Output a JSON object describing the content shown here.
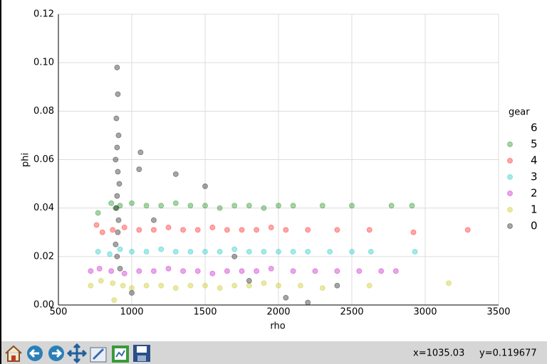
{
  "chart_data": {
    "type": "scatter",
    "x_label": "rho",
    "y_label": "phi",
    "xlim": [
      500,
      3500
    ],
    "ylim": [
      0,
      0.12
    ],
    "xticks": [
      500,
      1000,
      1500,
      2000,
      2500,
      3000,
      3500
    ],
    "yticks": [
      {
        "value": 0,
        "label": "0.00"
      },
      {
        "value": 0.02,
        "label": "0.02"
      },
      {
        "value": 0.04,
        "label": "0.04"
      },
      {
        "value": 0.06,
        "label": "0.06"
      },
      {
        "value": 0.08,
        "label": "0.08"
      },
      {
        "value": 0.1,
        "label": "0.10"
      },
      {
        "value": 0.12,
        "label": "0.12"
      }
    ],
    "grid": true,
    "legend_title": "gear",
    "legend_position": "right",
    "series": [
      {
        "name": "6",
        "x": [],
        "values": []
      },
      {
        "name": "5",
        "color": "#008000",
        "x": [
          770,
          860,
          890,
          920,
          1000,
          1100,
          1200,
          1300,
          1400,
          1500,
          1600,
          1700,
          1800,
          1900,
          2000,
          2100,
          2300,
          2500,
          2770,
          2910
        ],
        "values": [
          0.038,
          0.042,
          0.04,
          0.041,
          0.042,
          0.041,
          0.041,
          0.042,
          0.041,
          0.041,
          0.04,
          0.041,
          0.041,
          0.04,
          0.041,
          0.041,
          0.041,
          0.041,
          0.041,
          0.041
        ]
      },
      {
        "name": "4",
        "color": "#ff0000",
        "x": [
          760,
          800,
          870,
          950,
          1050,
          1150,
          1250,
          1350,
          1450,
          1550,
          1650,
          1750,
          1850,
          1950,
          2050,
          2200,
          2400,
          2620,
          2920,
          3290
        ],
        "values": [
          0.033,
          0.03,
          0.031,
          0.032,
          0.031,
          0.031,
          0.032,
          0.031,
          0.031,
          0.032,
          0.031,
          0.031,
          0.031,
          0.032,
          0.031,
          0.031,
          0.031,
          0.031,
          0.03,
          0.031
        ]
      },
      {
        "name": "3",
        "color": "#00bfbf",
        "x": [
          770,
          850,
          920,
          1000,
          1100,
          1200,
          1300,
          1400,
          1500,
          1600,
          1700,
          1800,
          1900,
          2000,
          2100,
          2200,
          2350,
          2500,
          2630,
          2930
        ],
        "values": [
          0.022,
          0.021,
          0.023,
          0.022,
          0.022,
          0.023,
          0.022,
          0.022,
          0.022,
          0.022,
          0.023,
          0.022,
          0.022,
          0.022,
          0.022,
          0.022,
          0.022,
          0.022,
          0.022,
          0.022
        ]
      },
      {
        "name": "2",
        "color": "#bf00bf",
        "x": [
          720,
          780,
          860,
          950,
          1050,
          1150,
          1250,
          1350,
          1450,
          1550,
          1650,
          1750,
          1850,
          1950,
          2100,
          2250,
          2400,
          2550,
          2700,
          2800
        ],
        "values": [
          0.014,
          0.015,
          0.014,
          0.013,
          0.014,
          0.014,
          0.015,
          0.014,
          0.014,
          0.013,
          0.014,
          0.014,
          0.014,
          0.015,
          0.014,
          0.014,
          0.014,
          0.014,
          0.014,
          0.014
        ]
      },
      {
        "name": "1",
        "color": "#bfbf00",
        "x": [
          720,
          790,
          870,
          940,
          1000,
          1100,
          1200,
          1300,
          1400,
          1500,
          1600,
          1700,
          1800,
          1900,
          2000,
          2150,
          2300,
          2620,
          3160,
          880
        ],
        "values": [
          0.008,
          0.01,
          0.009,
          0.008,
          0.007,
          0.008,
          0.008,
          0.007,
          0.008,
          0.008,
          0.007,
          0.008,
          0.008,
          0.009,
          0.008,
          0.008,
          0.007,
          0.008,
          0.009,
          0.002
        ]
      },
      {
        "name": "0",
        "color": "#000000",
        "x": [
          900,
          905,
          895,
          910,
          900,
          890,
          905,
          915,
          900,
          895,
          910,
          905,
          890,
          900,
          920,
          1060,
          1050,
          1300,
          1500,
          1800,
          2200,
          2400,
          1150,
          1700,
          1000,
          2050
        ],
        "values": [
          0.098,
          0.087,
          0.077,
          0.07,
          0.065,
          0.06,
          0.055,
          0.05,
          0.045,
          0.04,
          0.035,
          0.03,
          0.025,
          0.02,
          0.015,
          0.063,
          0.056,
          0.054,
          0.049,
          0.01,
          0.001,
          0.008,
          0.035,
          0.02,
          0.005,
          0.003
        ]
      }
    ]
  },
  "toolbar": {
    "status_x": "x=1035.03",
    "status_y": "y=0.119677"
  }
}
